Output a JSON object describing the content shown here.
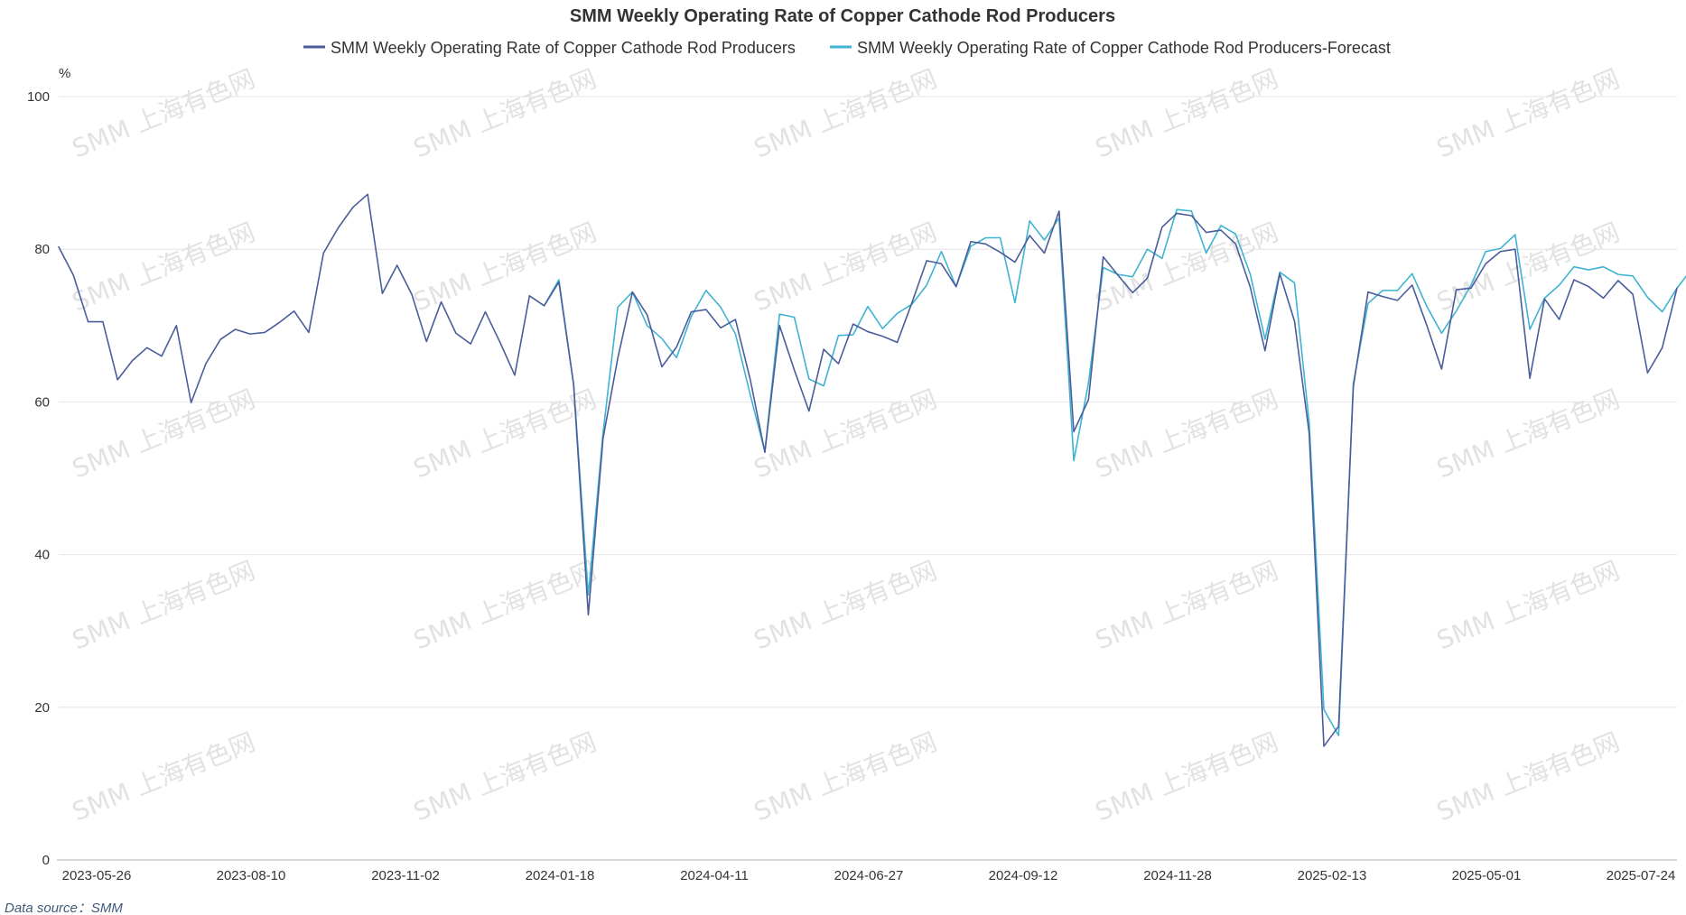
{
  "chart_data": {
    "type": "line",
    "title": "SMM Weekly Operating Rate of Copper Cathode Rod Producers",
    "unit": "%",
    "ylim": [
      0,
      100
    ],
    "yticks": [
      0,
      20,
      40,
      60,
      80,
      100
    ],
    "x_tick_labels": [
      "2023-05-26",
      "2023-08-10",
      "2023-11-02",
      "2024-01-18",
      "2024-04-11",
      "2024-06-27",
      "2024-09-12",
      "2024-11-28",
      "2025-02-13",
      "2025-05-01",
      "2025-07-24"
    ],
    "grid": true,
    "legend_position": "top-center",
    "source": "Data source：SMM",
    "watermark": "SMM 上海有色网",
    "series": [
      {
        "name": "SMM Weekly Operating Rate of Copper Cathode Rod Producers",
        "color": "#4a5d9a",
        "start_index": 0,
        "values": [
          80.3,
          76.6,
          70.5,
          70.5,
          62.9,
          65.4,
          67.1,
          66.0,
          70.0,
          59.9,
          65.0,
          68.2,
          69.5,
          68.9,
          69.1,
          70.4,
          71.9,
          69.1,
          79.5,
          82.8,
          85.5,
          87.2,
          74.2,
          77.9,
          74.1,
          67.9,
          73.1,
          69.0,
          67.6,
          71.8,
          67.8,
          63.5,
          73.9,
          72.6,
          75.7,
          62.3,
          32.1,
          55.2,
          65.7,
          74.4,
          71.4,
          64.6,
          67.2,
          71.8,
          72.1,
          69.7,
          70.8,
          63.0,
          53.4,
          70.0,
          64.2,
          58.8,
          66.9,
          65.0,
          70.2,
          69.2,
          68.6,
          67.8,
          73.0,
          78.5,
          78.1,
          75.1,
          81.0,
          80.7,
          79.6,
          78.3,
          81.8,
          79.5,
          85.0,
          56.1,
          60.3,
          79.0,
          76.6,
          74.3,
          76.2,
          82.9,
          84.7,
          84.4,
          82.2,
          82.5,
          80.7,
          75.0,
          66.7,
          76.8,
          70.6,
          55.9,
          14.9,
          17.5,
          62.0,
          74.4,
          73.8,
          73.3,
          75.3,
          70.0,
          64.3,
          74.7,
          74.9,
          78.1,
          79.7,
          80.0,
          63.1,
          73.5,
          70.8,
          76.0,
          75.1,
          73.6,
          75.9,
          74.1,
          63.8,
          67.1,
          74.9
        ]
      },
      {
        "name": "SMM Weekly Operating Rate of Copper Cathode Rod Producers-Forecast",
        "color": "#3fb3d2",
        "start_index": 33,
        "values": [
          72.6,
          76.0,
          62.3,
          34.7,
          55.9,
          72.4,
          74.4,
          70.0,
          68.3,
          65.8,
          71.2,
          74.6,
          72.4,
          68.9,
          61.0,
          53.5,
          71.5,
          71.1,
          63.0,
          62.1,
          68.7,
          68.8,
          72.5,
          69.6,
          71.6,
          72.8,
          75.3,
          79.7,
          75.1,
          80.4,
          81.5,
          81.5,
          73.0,
          83.7,
          81.2,
          84.1,
          52.3,
          62.5,
          77.6,
          76.7,
          76.4,
          80.0,
          78.8,
          85.2,
          85.0,
          79.5,
          83.1,
          82.0,
          76.7,
          68.2,
          77.0,
          75.6,
          57.3,
          19.7,
          16.3,
          62.4,
          72.9,
          74.6,
          74.6,
          76.8,
          72.5,
          69.0,
          71.9,
          75.3,
          79.7,
          80.1,
          81.9,
          69.5,
          73.6,
          75.3,
          77.7,
          77.3,
          77.7,
          76.7,
          76.5,
          73.7,
          71.8,
          74.9,
          77.4
        ]
      }
    ]
  }
}
